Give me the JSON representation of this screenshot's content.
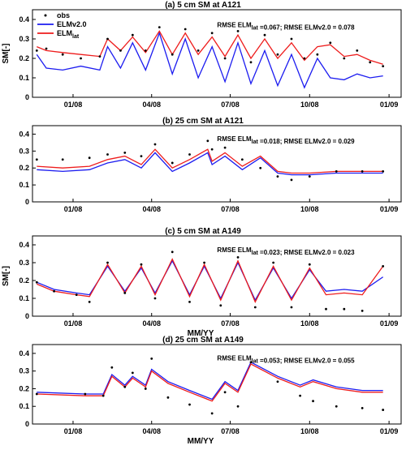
{
  "chart_data": [
    {
      "type": "line",
      "title": "(a) 5 cm SM at A121",
      "ylabel": "SM[-]",
      "xlabel": "",
      "ylim": [
        0,
        0.45
      ],
      "yticks": [
        "0",
        "0.1",
        "0.2",
        "0.3",
        "0.4"
      ],
      "xticks": [
        "01/08",
        "04/08",
        "07/08",
        "10/08",
        "01/09"
      ],
      "xlim": [
        "2007-11-15",
        "2009-01-15"
      ],
      "legend": [
        "obs",
        "ELMv2.0",
        "ELM_lat"
      ],
      "annotation": "RMSE ELM_lat =0.067; RMSE ELMv2.0 = 0.078",
      "series": [
        {
          "name": "obs",
          "x": [
            "2007-11-20",
            "2007-12-01",
            "2007-12-20",
            "2008-01-10",
            "2008-02-01",
            "2008-02-10",
            "2008-02-25",
            "2008-03-10",
            "2008-03-25",
            "2008-04-10",
            "2008-04-25",
            "2008-05-10",
            "2008-05-25",
            "2008-06-10",
            "2008-06-25",
            "2008-07-10",
            "2008-07-25",
            "2008-08-10",
            "2008-08-25",
            "2008-09-10",
            "2008-09-25",
            "2008-10-10",
            "2008-10-25",
            "2008-11-10",
            "2008-11-25",
            "2008-12-10",
            "2008-12-25"
          ],
          "values": [
            0.24,
            0.25,
            0.22,
            0.2,
            0.21,
            0.3,
            0.24,
            0.32,
            0.24,
            0.36,
            0.22,
            0.35,
            0.24,
            0.33,
            0.2,
            0.34,
            0.18,
            0.32,
            0.22,
            0.3,
            0.2,
            0.22,
            0.28,
            0.2,
            0.24,
            0.18,
            0.16
          ]
        },
        {
          "name": "ELMv2.0",
          "x": [
            "2007-11-20",
            "2007-12-01",
            "2007-12-20",
            "2008-01-10",
            "2008-02-01",
            "2008-02-10",
            "2008-02-25",
            "2008-03-10",
            "2008-03-25",
            "2008-04-10",
            "2008-04-25",
            "2008-05-10",
            "2008-05-25",
            "2008-06-10",
            "2008-06-25",
            "2008-07-10",
            "2008-07-25",
            "2008-08-10",
            "2008-08-25",
            "2008-09-10",
            "2008-09-25",
            "2008-10-10",
            "2008-10-25",
            "2008-11-10",
            "2008-11-25",
            "2008-12-10",
            "2008-12-25"
          ],
          "values": [
            0.22,
            0.15,
            0.14,
            0.16,
            0.14,
            0.26,
            0.15,
            0.28,
            0.14,
            0.33,
            0.12,
            0.3,
            0.1,
            0.26,
            0.08,
            0.28,
            0.07,
            0.24,
            0.06,
            0.22,
            0.05,
            0.2,
            0.1,
            0.09,
            0.12,
            0.1,
            0.11
          ]
        },
        {
          "name": "ELM_lat",
          "x": [
            "2007-11-20",
            "2007-12-01",
            "2007-12-20",
            "2008-01-10",
            "2008-02-01",
            "2008-02-10",
            "2008-02-25",
            "2008-03-10",
            "2008-03-25",
            "2008-04-10",
            "2008-04-25",
            "2008-05-10",
            "2008-05-25",
            "2008-06-10",
            "2008-06-25",
            "2008-07-10",
            "2008-07-25",
            "2008-08-10",
            "2008-08-25",
            "2008-09-10",
            "2008-09-25",
            "2008-10-10",
            "2008-10-25",
            "2008-11-10",
            "2008-11-25",
            "2008-12-10",
            "2008-12-25"
          ],
          "values": [
            0.26,
            0.24,
            0.23,
            0.22,
            0.21,
            0.3,
            0.24,
            0.31,
            0.23,
            0.34,
            0.22,
            0.33,
            0.22,
            0.31,
            0.21,
            0.32,
            0.2,
            0.3,
            0.2,
            0.28,
            0.19,
            0.26,
            0.27,
            0.21,
            0.22,
            0.19,
            0.17
          ]
        }
      ]
    },
    {
      "type": "line",
      "title": "(b) 25 cm SM at A121",
      "ylabel": "",
      "xlabel": "",
      "ylim": [
        0,
        0.45
      ],
      "yticks": [
        "0",
        "0.1",
        "0.2",
        "0.3",
        "0.4"
      ],
      "xticks": [
        "01/08",
        "04/08",
        "07/08",
        "10/08",
        "01/09"
      ],
      "xlim": [
        "2007-11-15",
        "2009-01-15"
      ],
      "annotation": "RMSE ELM_lat =0.018; RMSE ELMv2.0 = 0.029",
      "series": [
        {
          "name": "obs",
          "x": [
            "2007-11-20",
            "2007-12-20",
            "2008-01-20",
            "2008-02-10",
            "2008-03-01",
            "2008-03-20",
            "2008-04-05",
            "2008-04-25",
            "2008-05-15",
            "2008-06-05",
            "2008-06-10",
            "2008-06-25",
            "2008-07-15",
            "2008-08-05",
            "2008-08-25",
            "2008-09-10",
            "2008-10-01",
            "2008-11-01",
            "2008-12-01",
            "2008-12-25"
          ],
          "values": [
            0.25,
            0.25,
            0.26,
            0.28,
            0.29,
            0.27,
            0.34,
            0.23,
            0.28,
            0.36,
            0.31,
            0.32,
            0.25,
            0.2,
            0.15,
            0.13,
            0.15,
            0.18,
            0.18,
            0.18
          ]
        },
        {
          "name": "ELMv2.0",
          "x": [
            "2007-11-20",
            "2007-12-20",
            "2008-01-20",
            "2008-02-10",
            "2008-03-01",
            "2008-03-20",
            "2008-04-05",
            "2008-04-25",
            "2008-05-15",
            "2008-06-05",
            "2008-06-10",
            "2008-06-25",
            "2008-07-15",
            "2008-08-05",
            "2008-08-25",
            "2008-09-10",
            "2008-10-01",
            "2008-11-01",
            "2008-12-01",
            "2008-12-25"
          ],
          "values": [
            0.19,
            0.18,
            0.19,
            0.23,
            0.25,
            0.2,
            0.29,
            0.18,
            0.23,
            0.29,
            0.22,
            0.27,
            0.19,
            0.26,
            0.17,
            0.16,
            0.16,
            0.17,
            0.17,
            0.17
          ]
        },
        {
          "name": "ELM_lat",
          "x": [
            "2007-11-20",
            "2007-12-20",
            "2008-01-20",
            "2008-02-10",
            "2008-03-01",
            "2008-03-20",
            "2008-04-05",
            "2008-04-25",
            "2008-05-15",
            "2008-06-05",
            "2008-06-10",
            "2008-06-25",
            "2008-07-15",
            "2008-08-05",
            "2008-08-25",
            "2008-09-10",
            "2008-10-01",
            "2008-11-01",
            "2008-12-01",
            "2008-12-25"
          ],
          "values": [
            0.21,
            0.2,
            0.21,
            0.25,
            0.27,
            0.22,
            0.31,
            0.2,
            0.25,
            0.31,
            0.24,
            0.29,
            0.21,
            0.27,
            0.18,
            0.17,
            0.17,
            0.18,
            0.18,
            0.18
          ]
        }
      ]
    },
    {
      "type": "line",
      "title": "(c) 5 cm SM at A149",
      "ylabel": "SM[-]",
      "xlabel": "MM/YY",
      "ylim": [
        0,
        0.45
      ],
      "yticks": [
        "0",
        "0.1",
        "0.2",
        "0.3",
        "0.4"
      ],
      "xticks": [
        "01/08",
        "04/08",
        "07/08",
        "10/08",
        "01/09"
      ],
      "xlim": [
        "2007-11-15",
        "2009-01-15"
      ],
      "annotation": "RMSE ELM_lat =0.023; RMSE ELMv2.0 = 0.023",
      "series": [
        {
          "name": "obs",
          "x": [
            "2007-11-20",
            "2007-12-10",
            "2008-01-05",
            "2008-01-20",
            "2008-02-10",
            "2008-03-01",
            "2008-03-20",
            "2008-04-05",
            "2008-04-25",
            "2008-05-15",
            "2008-06-01",
            "2008-06-20",
            "2008-07-10",
            "2008-07-30",
            "2008-08-20",
            "2008-09-10",
            "2008-10-01",
            "2008-10-20",
            "2008-11-10",
            "2008-12-01",
            "2008-12-25"
          ],
          "values": [
            0.19,
            0.14,
            0.12,
            0.08,
            0.3,
            0.13,
            0.29,
            0.1,
            0.36,
            0.08,
            0.3,
            0.06,
            0.33,
            0.05,
            0.3,
            0.05,
            0.29,
            0.04,
            0.04,
            0.03,
            0.28
          ]
        },
        {
          "name": "ELMv2.0",
          "x": [
            "2007-11-20",
            "2007-12-10",
            "2008-01-05",
            "2008-01-20",
            "2008-02-10",
            "2008-03-01",
            "2008-03-20",
            "2008-04-05",
            "2008-04-25",
            "2008-05-15",
            "2008-06-01",
            "2008-06-20",
            "2008-07-10",
            "2008-07-30",
            "2008-08-20",
            "2008-09-10",
            "2008-10-01",
            "2008-10-20",
            "2008-11-10",
            "2008-12-01",
            "2008-12-25"
          ],
          "values": [
            0.19,
            0.15,
            0.13,
            0.12,
            0.28,
            0.14,
            0.27,
            0.13,
            0.31,
            0.12,
            0.28,
            0.1,
            0.3,
            0.09,
            0.27,
            0.1,
            0.26,
            0.14,
            0.15,
            0.14,
            0.22
          ]
        },
        {
          "name": "ELM_lat",
          "x": [
            "2007-11-20",
            "2007-12-10",
            "2008-01-05",
            "2008-01-20",
            "2008-02-10",
            "2008-03-01",
            "2008-03-20",
            "2008-04-05",
            "2008-04-25",
            "2008-05-15",
            "2008-06-01",
            "2008-06-20",
            "2008-07-10",
            "2008-07-30",
            "2008-08-20",
            "2008-09-10",
            "2008-10-01",
            "2008-10-20",
            "2008-11-10",
            "2008-12-01",
            "2008-12-25"
          ],
          "values": [
            0.18,
            0.14,
            0.12,
            0.11,
            0.29,
            0.13,
            0.28,
            0.12,
            0.32,
            0.11,
            0.29,
            0.09,
            0.31,
            0.08,
            0.28,
            0.09,
            0.27,
            0.12,
            0.13,
            0.12,
            0.28
          ]
        }
      ]
    },
    {
      "type": "line",
      "title": "(d) 25 cm SM at A149",
      "ylabel": "",
      "xlabel": "MM/YY",
      "ylim": [
        0,
        0.45
      ],
      "yticks": [
        "0",
        "0.1",
        "0.2",
        "0.3",
        "0.4"
      ],
      "xticks": [
        "01/08",
        "04/08",
        "07/08",
        "10/08",
        "01/09"
      ],
      "xlim": [
        "2007-11-15",
        "2009-01-15"
      ],
      "annotation": "RMSE ELM_lat =0.053; RMSE ELMv2.0 = 0.055",
      "series": [
        {
          "name": "obs",
          "x": [
            "2007-11-20",
            "2008-01-15",
            "2008-02-05",
            "2008-02-15",
            "2008-03-01",
            "2008-03-10",
            "2008-03-25",
            "2008-04-01",
            "2008-04-20",
            "2008-05-15",
            "2008-06-10",
            "2008-06-25",
            "2008-07-10",
            "2008-07-25",
            "2008-08-25",
            "2008-09-20",
            "2008-10-05",
            "2008-11-01",
            "2008-12-01",
            "2008-12-25"
          ],
          "values": [
            0.17,
            0.17,
            0.16,
            0.32,
            0.21,
            0.29,
            0.2,
            0.37,
            0.15,
            0.11,
            0.06,
            0.18,
            0.1,
            0.35,
            0.24,
            0.16,
            0.13,
            0.1,
            0.09,
            0.08
          ]
        },
        {
          "name": "ELMv2.0",
          "x": [
            "2007-11-20",
            "2008-01-15",
            "2008-02-05",
            "2008-02-15",
            "2008-03-01",
            "2008-03-10",
            "2008-03-25",
            "2008-04-01",
            "2008-04-20",
            "2008-05-15",
            "2008-06-10",
            "2008-06-25",
            "2008-07-10",
            "2008-07-25",
            "2008-08-25",
            "2008-09-20",
            "2008-10-05",
            "2008-11-01",
            "2008-12-01",
            "2008-12-25"
          ],
          "values": [
            0.18,
            0.17,
            0.17,
            0.28,
            0.22,
            0.27,
            0.22,
            0.31,
            0.24,
            0.19,
            0.14,
            0.24,
            0.19,
            0.35,
            0.27,
            0.22,
            0.25,
            0.21,
            0.19,
            0.19
          ]
        },
        {
          "name": "ELM_lat",
          "x": [
            "2007-11-20",
            "2008-01-15",
            "2008-02-05",
            "2008-02-15",
            "2008-03-01",
            "2008-03-10",
            "2008-03-25",
            "2008-04-01",
            "2008-04-20",
            "2008-05-15",
            "2008-06-10",
            "2008-06-25",
            "2008-07-10",
            "2008-07-25",
            "2008-08-25",
            "2008-09-20",
            "2008-10-05",
            "2008-11-01",
            "2008-12-01",
            "2008-12-25"
          ],
          "values": [
            0.17,
            0.16,
            0.16,
            0.27,
            0.21,
            0.26,
            0.21,
            0.3,
            0.23,
            0.18,
            0.13,
            0.23,
            0.18,
            0.34,
            0.26,
            0.21,
            0.24,
            0.2,
            0.18,
            0.18
          ]
        }
      ]
    }
  ],
  "colors": {
    "obs": "#000000",
    "ELMv2.0": "#1c1cf0",
    "ELM_lat": "#ee1c1c"
  }
}
